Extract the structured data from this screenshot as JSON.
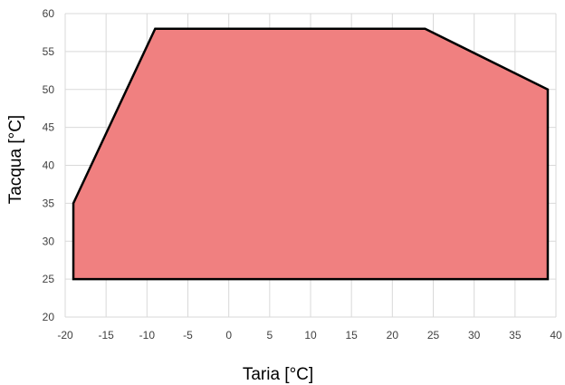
{
  "chart_data": {
    "type": "area",
    "xlabel": "Taria [°C]",
    "ylabel": "Tacqua [°C]",
    "xlim": [
      -20,
      40
    ],
    "ylim": [
      20,
      60
    ],
    "x_ticks": [
      -20,
      -15,
      -10,
      -5,
      0,
      5,
      10,
      15,
      20,
      25,
      30,
      35,
      40
    ],
    "y_ticks": [
      20,
      25,
      30,
      35,
      40,
      45,
      50,
      55,
      60
    ],
    "grid": true,
    "series": [
      {
        "points": [
          {
            "x": -19,
            "y": 25
          },
          {
            "x": -19,
            "y": 35
          },
          {
            "x": -9,
            "y": 58
          },
          {
            "x": 24,
            "y": 58
          },
          {
            "x": 39,
            "y": 50
          },
          {
            "x": 39,
            "y": 25
          }
        ],
        "fill_color": "#f08080",
        "stroke_color": "#000000"
      }
    ]
  }
}
